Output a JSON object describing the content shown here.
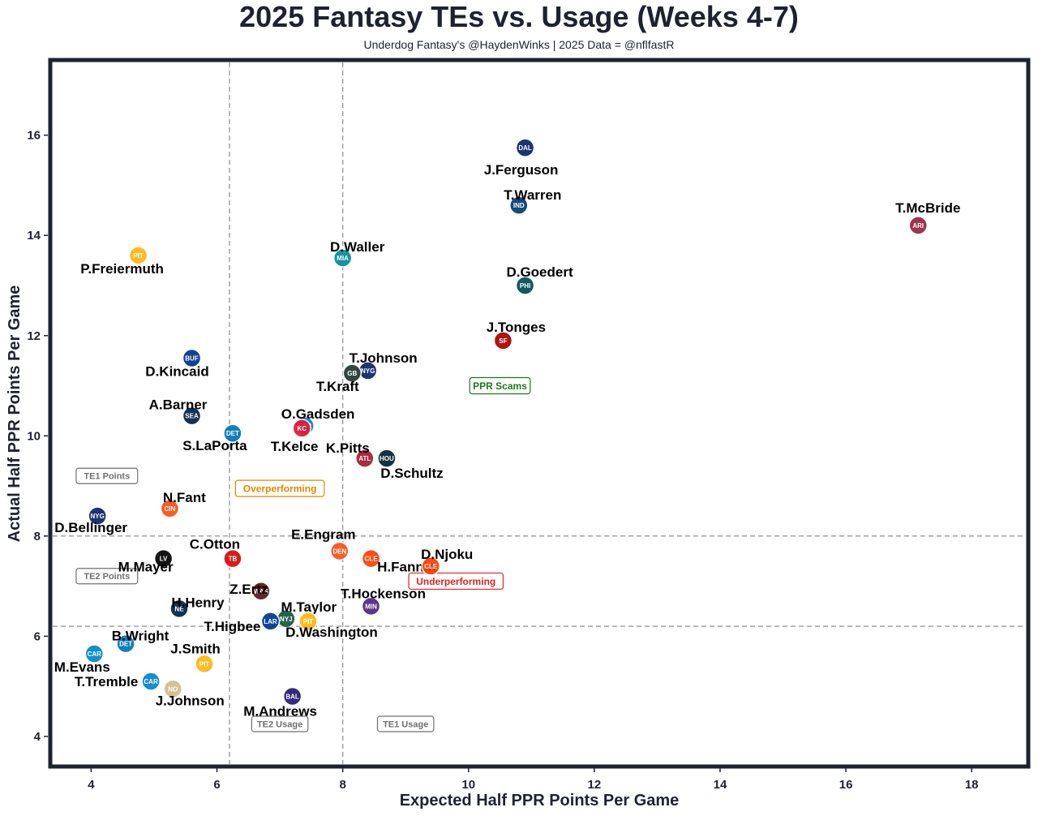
{
  "header": {
    "title": "2025 Fantasy TEs vs. Usage (Weeks 4-7)",
    "subtitle": "Underdog Fantasy's @HaydenWinks | 2025 Data = @nflfastR"
  },
  "chart_data": {
    "type": "scatter",
    "title": "2025 Fantasy TEs vs. Usage (Weeks 4-7)",
    "xlabel": "Expected Half PPR Points Per Game",
    "ylabel": "Actual Half PPR Points Per Game",
    "xlim": [
      3.35,
      18.9
    ],
    "ylim": [
      3.4,
      17.5
    ],
    "xticks": [
      4,
      6,
      8,
      10,
      12,
      14,
      16,
      18
    ],
    "yticks": [
      4,
      6,
      8,
      10,
      12,
      14,
      16
    ],
    "grid": false,
    "reference_lines": {
      "vertical": [
        {
          "x": 6.2,
          "label": "TE2 Usage"
        },
        {
          "x": 8.0,
          "label": "TE1 Usage"
        }
      ],
      "horizontal": [
        {
          "y": 8.0,
          "label": "TE1 Points"
        },
        {
          "y": 6.2,
          "label": "TE2 Points"
        }
      ]
    },
    "zone_labels": [
      {
        "text": "TE1 Points",
        "x": 4.25,
        "y": 9.2,
        "color": "#707070"
      },
      {
        "text": "TE2 Points",
        "x": 4.25,
        "y": 7.2,
        "color": "#707070"
      },
      {
        "text": "TE2 Usage",
        "x": 7.0,
        "y": 4.25,
        "color": "#707070"
      },
      {
        "text": "TE1 Usage",
        "x": 9.0,
        "y": 4.25,
        "color": "#707070"
      }
    ],
    "callouts": [
      {
        "text": "PPR Scams",
        "x": 10.5,
        "y": 11.0,
        "color": "#1a7a1a"
      },
      {
        "text": "Overperforming",
        "x": 7.0,
        "y": 8.95,
        "color": "#e08a00"
      },
      {
        "text": "Underperforming",
        "x": 9.8,
        "y": 7.1,
        "color": "#e0241f"
      }
    ],
    "points": [
      {
        "name": "J.Ferguson",
        "team": "DAL",
        "x": 10.9,
        "y": 15.75,
        "color": "#0b2265"
      },
      {
        "name": "T.Warren",
        "team": "IND",
        "x": 10.8,
        "y": 14.6,
        "color": "#003b75"
      },
      {
        "name": "T.McBride",
        "team": "ARI",
        "x": 17.15,
        "y": 14.2,
        "color": "#97233f"
      },
      {
        "name": "P.Freiermuth",
        "team": "PIT",
        "x": 4.75,
        "y": 13.6,
        "color": "#ffb612"
      },
      {
        "name": "D.Waller",
        "team": "MIA",
        "x": 8.0,
        "y": 13.55,
        "color": "#008e97"
      },
      {
        "name": "D.Goedert",
        "team": "PHI",
        "x": 10.9,
        "y": 13.0,
        "color": "#004c54"
      },
      {
        "name": "J.Tonges",
        "team": "SF",
        "x": 10.55,
        "y": 11.9,
        "color": "#aa0000"
      },
      {
        "name": "D.Kincaid",
        "team": "BUF",
        "x": 5.6,
        "y": 11.55,
        "color": "#00338d"
      },
      {
        "name": "T.Johnson",
        "team": "NYG",
        "x": 8.4,
        "y": 11.3,
        "color": "#0b2265"
      },
      {
        "name": "T.Kraft",
        "team": "GB",
        "x": 8.15,
        "y": 11.25,
        "color": "#203731"
      },
      {
        "name": "A.Barner",
        "team": "SEA",
        "x": 5.6,
        "y": 10.4,
        "color": "#002244"
      },
      {
        "name": "O.Gadsden",
        "team": "LAC",
        "x": 7.4,
        "y": 10.2,
        "color": "#0080c6"
      },
      {
        "name": "T.Kelce",
        "team": "KC",
        "x": 7.35,
        "y": 10.15,
        "color": "#e31837"
      },
      {
        "name": "S.LaPorta",
        "team": "DET",
        "x": 6.25,
        "y": 10.05,
        "color": "#0076b6"
      },
      {
        "name": "K.Pitts",
        "team": "ATL",
        "x": 8.35,
        "y": 9.55,
        "color": "#a71930"
      },
      {
        "name": "D.Schultz",
        "team": "HOU",
        "x": 8.7,
        "y": 9.55,
        "color": "#03202f"
      },
      {
        "name": "N.Fant",
        "team": "CIN",
        "x": 5.25,
        "y": 8.55,
        "color": "#fb4f14"
      },
      {
        "name": "D.Bellinger",
        "team": "NYG",
        "x": 4.1,
        "y": 8.4,
        "color": "#0b2265"
      },
      {
        "name": "C.Otton",
        "team": "TB",
        "x": 6.25,
        "y": 7.55,
        "color": "#d50a0a"
      },
      {
        "name": "E.Engram",
        "team": "DEN",
        "x": 7.95,
        "y": 7.7,
        "color": "#fb4f14"
      },
      {
        "name": "H.Fannin",
        "team": "CLE",
        "x": 8.45,
        "y": 7.55,
        "color": "#ff3c00"
      },
      {
        "name": "D.Njoku",
        "team": "CLE",
        "x": 9.4,
        "y": 7.4,
        "color": "#ff3c00"
      },
      {
        "name": "M.Mayer",
        "team": "LV",
        "x": 5.15,
        "y": 7.55,
        "color": "#000000"
      },
      {
        "name": "Z.Ertz",
        "team": "WAS",
        "x": 6.7,
        "y": 6.9,
        "color": "#5a1414"
      },
      {
        "name": "T.Hockenson",
        "team": "MIN",
        "x": 8.45,
        "y": 6.6,
        "color": "#4f2683"
      },
      {
        "name": "H.Henry",
        "team": "NE",
        "x": 5.4,
        "y": 6.55,
        "color": "#002244"
      },
      {
        "name": "M.Taylor",
        "team": "NYJ",
        "x": 7.1,
        "y": 6.35,
        "color": "#125740"
      },
      {
        "name": "T.Higbee",
        "team": "LAR",
        "x": 6.85,
        "y": 6.3,
        "color": "#003594"
      },
      {
        "name": "D.Washington",
        "team": "PIT",
        "x": 7.45,
        "y": 6.3,
        "color": "#ffb612"
      },
      {
        "name": "B.Wright",
        "team": "DET",
        "x": 4.55,
        "y": 5.85,
        "color": "#0076b6"
      },
      {
        "name": "M.Evans",
        "team": "CAR",
        "x": 4.05,
        "y": 5.65,
        "color": "#0085ca"
      },
      {
        "name": "J.Smith",
        "team": "PIT",
        "x": 5.8,
        "y": 5.45,
        "color": "#ffb612"
      },
      {
        "name": "T.Tremble",
        "team": "CAR",
        "x": 4.95,
        "y": 5.1,
        "color": "#0085ca"
      },
      {
        "name": "J.Johnson",
        "team": "NO",
        "x": 5.3,
        "y": 4.95,
        "color": "#d3bc8d"
      },
      {
        "name": "M.Andrews",
        "team": "BAL",
        "x": 7.2,
        "y": 4.8,
        "color": "#241773"
      }
    ]
  }
}
